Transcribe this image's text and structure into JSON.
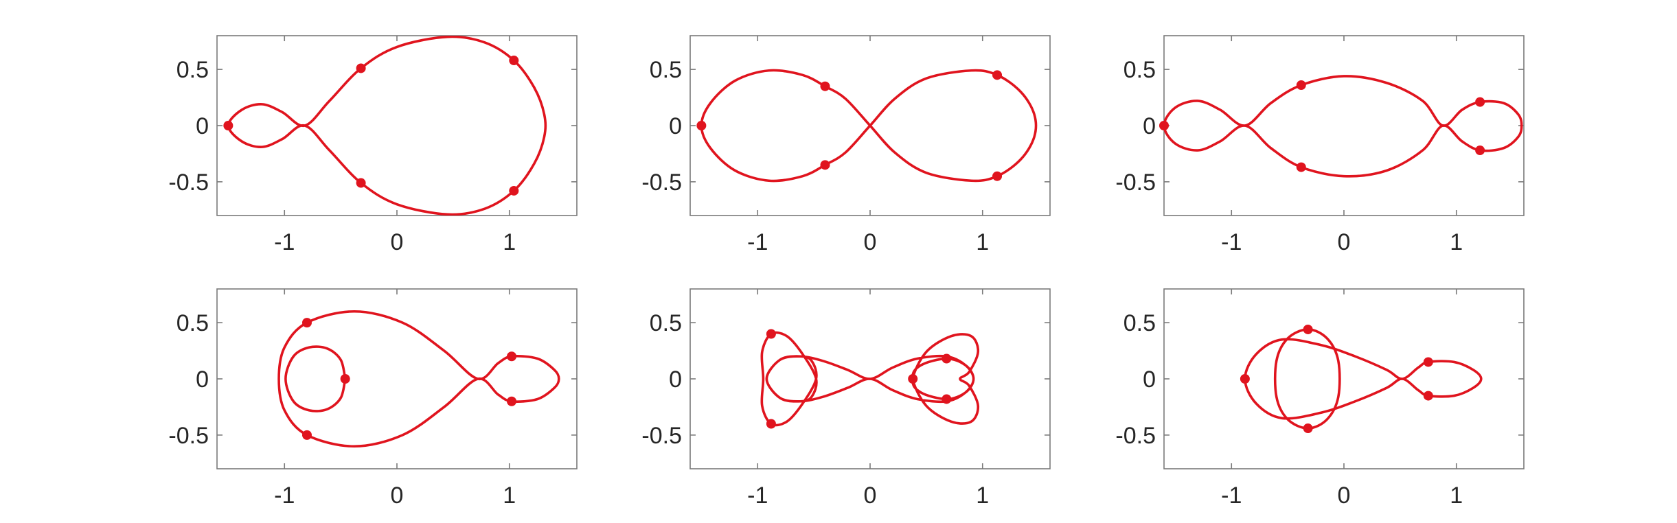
{
  "chart_data": {
    "type": "line",
    "colors": {
      "curve": "#e0141e",
      "axes": "#7a7a7a",
      "text": "#262626",
      "background": "#ffffff"
    },
    "panels": [
      {
        "id": "top-left",
        "xlim": [
          -1.6,
          1.6
        ],
        "ylim": [
          -0.8,
          0.8
        ],
        "xticks": [
          {
            "v": -1,
            "label": "-1"
          },
          {
            "v": 0,
            "label": "0"
          },
          {
            "v": 1,
            "label": "1"
          }
        ],
        "yticks": [
          {
            "v": 0.5,
            "label": "0.5"
          },
          {
            "v": 0,
            "label": "0"
          },
          {
            "v": -0.5,
            "label": "-0.5"
          }
        ],
        "curve": [
          [
            -1.5,
            0.0
          ],
          [
            -1.38,
            0.14
          ],
          [
            -1.2,
            0.19
          ],
          [
            -1.02,
            0.12
          ],
          [
            -0.82,
            0.0
          ],
          [
            -0.6,
            0.22
          ],
          [
            -0.32,
            0.51
          ],
          [
            0.0,
            0.7
          ],
          [
            0.45,
            0.79
          ],
          [
            0.78,
            0.74
          ],
          [
            1.04,
            0.58
          ],
          [
            1.22,
            0.34
          ],
          [
            1.31,
            0.1
          ],
          [
            1.31,
            -0.1
          ],
          [
            1.22,
            -0.34
          ],
          [
            1.04,
            -0.58
          ],
          [
            0.78,
            -0.74
          ],
          [
            0.45,
            -0.79
          ],
          [
            0.0,
            -0.7
          ],
          [
            -0.32,
            -0.51
          ],
          [
            -0.6,
            -0.22
          ],
          [
            -0.82,
            0.0
          ],
          [
            -1.02,
            -0.12
          ],
          [
            -1.2,
            -0.19
          ],
          [
            -1.38,
            -0.14
          ],
          [
            -1.5,
            0.0
          ]
        ],
        "bodies": [
          [
            -1.5,
            0.0
          ],
          [
            -0.32,
            0.51
          ],
          [
            -0.32,
            -0.51
          ],
          [
            1.04,
            0.58
          ],
          [
            1.04,
            -0.58
          ]
        ]
      },
      {
        "id": "top-middle",
        "xlim": [
          -1.6,
          1.6
        ],
        "ylim": [
          -0.8,
          0.8
        ],
        "xticks": [
          {
            "v": -1,
            "label": "-1"
          },
          {
            "v": 0,
            "label": "0"
          },
          {
            "v": 1,
            "label": "1"
          }
        ],
        "yticks": [
          {
            "v": 0.5,
            "label": "0.5"
          },
          {
            "v": 0,
            "label": "0"
          },
          {
            "v": -0.5,
            "label": "-0.5"
          }
        ],
        "curve": [
          [
            0.0,
            0.0
          ],
          [
            0.22,
            0.24
          ],
          [
            0.5,
            0.42
          ],
          [
            0.9,
            0.49
          ],
          [
            1.13,
            0.45
          ],
          [
            1.34,
            0.3
          ],
          [
            1.46,
            0.1
          ],
          [
            1.46,
            -0.1
          ],
          [
            1.34,
            -0.3
          ],
          [
            1.13,
            -0.45
          ],
          [
            0.9,
            -0.49
          ],
          [
            0.5,
            -0.42
          ],
          [
            0.22,
            -0.24
          ],
          [
            0.0,
            0.0
          ],
          [
            -0.22,
            0.24
          ],
          [
            -0.4,
            0.35
          ],
          [
            -0.6,
            0.45
          ],
          [
            -0.9,
            0.49
          ],
          [
            -1.2,
            0.4
          ],
          [
            -1.42,
            0.2
          ],
          [
            -1.5,
            0.0
          ],
          [
            -1.42,
            -0.2
          ],
          [
            -1.2,
            -0.4
          ],
          [
            -0.9,
            -0.49
          ],
          [
            -0.6,
            -0.45
          ],
          [
            -0.4,
            -0.35
          ],
          [
            -0.22,
            -0.24
          ],
          [
            0.0,
            0.0
          ]
        ],
        "bodies": [
          [
            -1.5,
            0.0
          ],
          [
            -0.4,
            0.35
          ],
          [
            -0.4,
            -0.35
          ],
          [
            1.13,
            0.45
          ],
          [
            1.13,
            -0.45
          ]
        ]
      },
      {
        "id": "top-right",
        "xlim": [
          -1.6,
          1.6
        ],
        "ylim": [
          -0.8,
          0.8
        ],
        "xticks": [
          {
            "v": -1,
            "label": "-1"
          },
          {
            "v": 0,
            "label": "0"
          },
          {
            "v": 1,
            "label": "1"
          }
        ],
        "yticks": [
          {
            "v": 0.5,
            "label": "0.5"
          },
          {
            "v": 0,
            "label": "0"
          },
          {
            "v": -0.5,
            "label": "-0.5"
          }
        ],
        "curve": [
          [
            -1.6,
            0.0
          ],
          [
            -1.5,
            0.16
          ],
          [
            -1.3,
            0.22
          ],
          [
            -1.1,
            0.14
          ],
          [
            -0.88,
            0.0
          ],
          [
            -0.65,
            0.2
          ],
          [
            -0.38,
            0.36
          ],
          [
            0.0,
            0.44
          ],
          [
            0.38,
            0.38
          ],
          [
            0.7,
            0.22
          ],
          [
            0.88,
            0.0
          ],
          [
            1.05,
            0.14
          ],
          [
            1.21,
            0.21
          ],
          [
            1.42,
            0.2
          ],
          [
            1.55,
            0.1
          ],
          [
            1.58,
            0.0
          ],
          [
            1.55,
            -0.1
          ],
          [
            1.42,
            -0.2
          ],
          [
            1.21,
            -0.22
          ],
          [
            1.05,
            -0.14
          ],
          [
            0.88,
            0.0
          ],
          [
            0.7,
            -0.22
          ],
          [
            0.38,
            -0.4
          ],
          [
            0.0,
            -0.45
          ],
          [
            -0.38,
            -0.37
          ],
          [
            -0.65,
            -0.2
          ],
          [
            -0.88,
            0.0
          ],
          [
            -1.1,
            -0.14
          ],
          [
            -1.3,
            -0.22
          ],
          [
            -1.5,
            -0.16
          ],
          [
            -1.6,
            0.0
          ]
        ],
        "bodies": [
          [
            -1.6,
            0.0
          ],
          [
            -0.38,
            0.36
          ],
          [
            -0.38,
            -0.37
          ],
          [
            1.21,
            0.21
          ],
          [
            1.21,
            -0.22
          ]
        ]
      },
      {
        "id": "bottom-left",
        "xlim": [
          -1.6,
          1.6
        ],
        "ylim": [
          -0.8,
          0.8
        ],
        "xticks": [
          {
            "v": -1,
            "label": "-1"
          },
          {
            "v": 0,
            "label": "0"
          },
          {
            "v": 1,
            "label": "1"
          }
        ],
        "yticks": [
          {
            "v": 0.5,
            "label": "0.5"
          },
          {
            "v": 0,
            "label": "0"
          },
          {
            "v": -0.5,
            "label": "-0.5"
          }
        ],
        "curve": [
          [
            -0.46,
            0.0
          ],
          [
            -0.5,
            0.17
          ],
          [
            -0.62,
            0.27
          ],
          [
            -0.78,
            0.28
          ],
          [
            -0.92,
            0.2
          ],
          [
            -0.99,
            0.0
          ],
          [
            -0.92,
            -0.2
          ],
          [
            -0.78,
            -0.28
          ],
          [
            -0.62,
            -0.27
          ],
          [
            -0.5,
            -0.17
          ],
          [
            -0.46,
            0.0
          ],
          [
            -0.46,
            0.0
          ]
        ],
        "curve2": [
          [
            -1.05,
            0.0
          ],
          [
            -1.0,
            0.28
          ],
          [
            -0.8,
            0.5
          ],
          [
            -0.38,
            0.6
          ],
          [
            0.05,
            0.5
          ],
          [
            0.42,
            0.25
          ],
          [
            0.72,
            0.0
          ],
          [
            0.9,
            0.14
          ],
          [
            1.02,
            0.2
          ],
          [
            1.25,
            0.18
          ],
          [
            1.4,
            0.08
          ],
          [
            1.44,
            0.0
          ],
          [
            1.4,
            -0.08
          ],
          [
            1.25,
            -0.18
          ],
          [
            1.02,
            -0.2
          ],
          [
            0.9,
            -0.14
          ],
          [
            0.72,
            0.0
          ],
          [
            0.42,
            -0.25
          ],
          [
            0.05,
            -0.5
          ],
          [
            -0.38,
            -0.6
          ],
          [
            -0.8,
            -0.5
          ],
          [
            -1.0,
            -0.28
          ],
          [
            -1.05,
            0.0
          ]
        ],
        "bodies": [
          [
            -0.46,
            0.0
          ],
          [
            -0.8,
            0.5
          ],
          [
            -0.8,
            -0.5
          ],
          [
            1.02,
            0.2
          ],
          [
            1.02,
            -0.2
          ]
        ]
      },
      {
        "id": "bottom-middle",
        "xlim": [
          -1.6,
          1.6
        ],
        "ylim": [
          -0.8,
          0.8
        ],
        "xticks": [
          {
            "v": -1,
            "label": "-1"
          },
          {
            "v": 0,
            "label": "0"
          },
          {
            "v": 1,
            "label": "1"
          }
        ],
        "yticks": [
          {
            "v": 0.5,
            "label": "0.5"
          },
          {
            "v": 0,
            "label": "0"
          },
          {
            "v": -0.5,
            "label": "-0.5"
          }
        ],
        "curve": [
          [
            -0.88,
            0.4
          ],
          [
            -0.74,
            0.38
          ],
          [
            -0.6,
            0.22
          ],
          [
            -0.48,
            0.0
          ],
          [
            -0.52,
            -0.16
          ],
          [
            -0.62,
            -0.2
          ],
          [
            -0.8,
            -0.17
          ],
          [
            -0.92,
            0.0
          ],
          [
            -0.8,
            0.17
          ],
          [
            -0.62,
            0.2
          ],
          [
            -0.42,
            0.16
          ],
          [
            -0.2,
            0.08
          ],
          [
            0.0,
            0.0
          ],
          [
            0.2,
            0.1
          ],
          [
            0.42,
            0.18
          ],
          [
            0.68,
            0.2
          ],
          [
            0.85,
            0.12
          ],
          [
            0.92,
            0.0
          ],
          [
            0.85,
            -0.12
          ],
          [
            0.68,
            -0.18
          ],
          [
            0.45,
            -0.12
          ],
          [
            0.38,
            0.0
          ],
          [
            0.5,
            0.24
          ],
          [
            0.72,
            0.38
          ],
          [
            0.9,
            0.38
          ],
          [
            0.96,
            0.24
          ],
          [
            0.88,
            0.06
          ],
          [
            0.8,
            0.0
          ],
          [
            0.88,
            -0.06
          ],
          [
            0.96,
            -0.24
          ],
          [
            0.9,
            -0.38
          ],
          [
            0.72,
            -0.38
          ],
          [
            0.5,
            -0.24
          ],
          [
            0.38,
            0.0
          ],
          [
            0.45,
            0.12
          ],
          [
            0.68,
            0.18
          ],
          [
            0.85,
            0.12
          ],
          [
            0.92,
            0.0
          ],
          [
            0.85,
            -0.12
          ],
          [
            0.68,
            -0.2
          ],
          [
            0.42,
            -0.18
          ],
          [
            0.2,
            -0.1
          ],
          [
            0.0,
            0.0
          ],
          [
            -0.2,
            -0.08
          ],
          [
            -0.42,
            -0.16
          ],
          [
            -0.62,
            -0.2
          ],
          [
            -0.8,
            -0.17
          ],
          [
            -0.92,
            0.0
          ],
          [
            -0.8,
            0.17
          ],
          [
            -0.62,
            0.2
          ],
          [
            -0.52,
            0.16
          ],
          [
            -0.48,
            0.0
          ],
          [
            -0.6,
            -0.22
          ],
          [
            -0.74,
            -0.38
          ],
          [
            -0.88,
            -0.4
          ],
          [
            -0.96,
            -0.24
          ],
          [
            -0.95,
            0.0
          ],
          [
            -0.96,
            0.24
          ],
          [
            -0.88,
            0.4
          ]
        ],
        "bodies": [
          [
            -0.88,
            0.4
          ],
          [
            -0.88,
            -0.4
          ],
          [
            0.38,
            0.0
          ],
          [
            0.68,
            0.18
          ],
          [
            0.68,
            -0.18
          ]
        ]
      },
      {
        "id": "bottom-right",
        "xlim": [
          -1.6,
          1.6
        ],
        "ylim": [
          -0.8,
          0.8
        ],
        "xticks": [
          {
            "v": -1,
            "label": "-1"
          },
          {
            "v": 0,
            "label": "0"
          },
          {
            "v": 1,
            "label": "1"
          }
        ],
        "yticks": [
          {
            "v": 0.5,
            "label": "0.5"
          },
          {
            "v": 0,
            "label": "0"
          },
          {
            "v": -0.5,
            "label": "-0.5"
          }
        ],
        "curve": [
          [
            -0.88,
            0.0
          ],
          [
            -0.78,
            0.22
          ],
          [
            -0.55,
            0.35
          ],
          [
            -0.2,
            0.3
          ],
          [
            0.1,
            0.2
          ],
          [
            0.38,
            0.08
          ],
          [
            0.52,
            0.0
          ],
          [
            0.66,
            0.1
          ],
          [
            0.75,
            0.15
          ],
          [
            0.98,
            0.15
          ],
          [
            1.15,
            0.08
          ],
          [
            1.22,
            0.0
          ],
          [
            1.15,
            -0.08
          ],
          [
            0.98,
            -0.15
          ],
          [
            0.75,
            -0.15
          ],
          [
            0.66,
            -0.1
          ],
          [
            0.52,
            0.0
          ],
          [
            0.38,
            -0.08
          ],
          [
            0.1,
            -0.2
          ],
          [
            -0.2,
            -0.3
          ],
          [
            -0.55,
            -0.35
          ],
          [
            -0.78,
            -0.22
          ],
          [
            -0.88,
            0.0
          ]
        ],
        "curve2": [
          [
            -0.32,
            0.44
          ],
          [
            -0.15,
            0.36
          ],
          [
            -0.05,
            0.16
          ],
          [
            -0.05,
            -0.16
          ],
          [
            -0.15,
            -0.36
          ],
          [
            -0.32,
            -0.44
          ],
          [
            -0.5,
            -0.36
          ],
          [
            -0.6,
            -0.16
          ],
          [
            -0.6,
            0.16
          ],
          [
            -0.5,
            0.36
          ],
          [
            -0.32,
            0.44
          ]
        ],
        "bodies": [
          [
            -0.88,
            0.0
          ],
          [
            -0.32,
            0.44
          ],
          [
            -0.32,
            -0.44
          ],
          [
            0.75,
            0.15
          ],
          [
            0.75,
            -0.15
          ]
        ]
      }
    ]
  }
}
